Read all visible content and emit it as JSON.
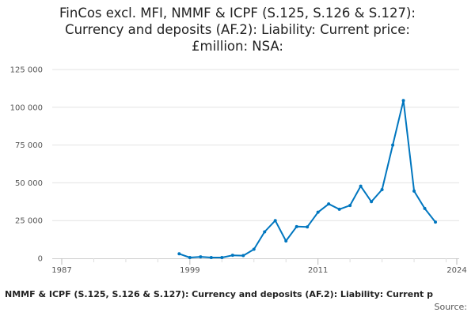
{
  "title_lines": [
    "FinCos excl. MFI, NMMF & ICPF (S.125, S.126 & S.127):",
    "Currency and deposits (AF.2): Liability: Current price:",
    "£million: NSA:"
  ],
  "footer": {
    "series_text": "NMMF & ICPF (S.125, S.126 & S.127): Currency and deposits (AF.2): Liability: Current p",
    "source_label": "Source:"
  },
  "chart_data": {
    "type": "line",
    "title": "FinCos excl. MFI, NMMF & ICPF (S.125, S.126 & S.127): Currency and deposits (AF.2): Liability: Current price: £million: NSA:",
    "xlabel": "",
    "ylabel": "",
    "xlim": [
      1987,
      2024
    ],
    "ylim": [
      0,
      125000
    ],
    "x_ticks": [
      1987,
      1999,
      2011,
      2024
    ],
    "y_ticks": [
      0,
      25000,
      50000,
      75000,
      100000,
      125000
    ],
    "y_tick_labels": [
      "0",
      "25 000",
      "50 000",
      "75 000",
      "100 000",
      "125 000"
    ],
    "grid": "horizontal",
    "line_color": "#0076bf",
    "series": [
      {
        "x": [
          1998,
          1999,
          2000,
          2001,
          2002,
          2003,
          2004,
          2005,
          2006,
          2007,
          2008,
          2009,
          2010,
          2011,
          2012,
          2013,
          2014,
          2015,
          2016,
          2017,
          2018,
          2019,
          2020,
          2021,
          2022
        ],
        "values": [
          3000,
          500,
          1000,
          500,
          500,
          2000,
          1800,
          6000,
          17500,
          25000,
          11500,
          21000,
          20800,
          30500,
          36000,
          32500,
          35000,
          47800,
          37500,
          45500,
          75000,
          104500,
          44500,
          33000,
          24000
        ]
      }
    ]
  }
}
